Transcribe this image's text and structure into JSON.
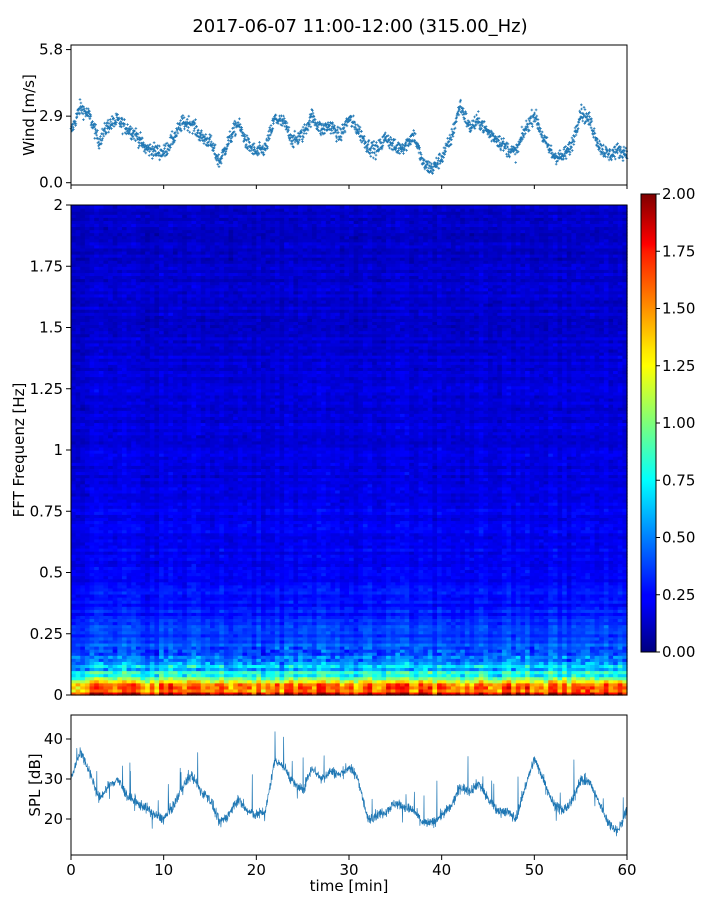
{
  "chart_data": [
    {
      "type": "scatter",
      "title": "2017-06-07 11:00-12:00 (315.00_Hz)",
      "ylabel": "Wind [m/s]",
      "ytick_labels": [
        "0.0",
        "2.9",
        "5.8"
      ],
      "yticks": [
        0.0,
        2.9,
        5.8
      ],
      "xlim": [
        0,
        60
      ],
      "ylim": [
        -0.1,
        6.0
      ],
      "marker": "+",
      "color": "#1f77b4",
      "series": [
        {
          "x": [
            0,
            1,
            2,
            3,
            4,
            5,
            6,
            7,
            8,
            9,
            10,
            11,
            12,
            13,
            14,
            15,
            16,
            17,
            18,
            19,
            20,
            21,
            22,
            23,
            24,
            25,
            26,
            27,
            28,
            29,
            30,
            31,
            32,
            33,
            34,
            35,
            36,
            37,
            38,
            39,
            40,
            41,
            42,
            43,
            44,
            45,
            46,
            47,
            48,
            49,
            50,
            51,
            52,
            53,
            54,
            55,
            56,
            57,
            58,
            59,
            60
          ],
          "y": [
            2.2,
            3.3,
            2.9,
            1.8,
            2.5,
            2.7,
            2.4,
            2.1,
            1.5,
            1.4,
            1.3,
            1.9,
            2.6,
            2.6,
            2.0,
            1.8,
            0.9,
            1.8,
            2.6,
            1.7,
            1.3,
            1.5,
            2.8,
            2.6,
            1.8,
            2.1,
            2.9,
            2.3,
            2.5,
            2.0,
            2.8,
            2.3,
            1.6,
            1.4,
            2.0,
            1.5,
            1.6,
            2.1,
            0.8,
            0.6,
            1.1,
            1.9,
            3.4,
            2.4,
            2.7,
            2.2,
            1.9,
            1.5,
            1.3,
            2.3,
            3.0,
            1.9,
            1.2,
            1.1,
            1.6,
            3.1,
            2.7,
            1.6,
            1.2,
            1.4,
            1.3
          ]
        }
      ]
    },
    {
      "type": "heatmap",
      "ylabel": "FFT Frequenz [Hz]",
      "ytick_labels": [
        "0",
        "0.25",
        "0.5",
        "0.75",
        "1",
        "1.25",
        "1.5",
        "1.75",
        "2"
      ],
      "yticks": [
        0,
        0.25,
        0.5,
        0.75,
        1,
        1.25,
        1.5,
        1.75,
        2
      ],
      "xlim": [
        0,
        60
      ],
      "ylim": [
        0,
        2
      ],
      "colormap": "jet",
      "colorbar": {
        "range": [
          0.0,
          2.0
        ],
        "tick_labels": [
          "0.00",
          "0.25",
          "0.50",
          "0.75",
          "1.00",
          "1.25",
          "1.50",
          "1.75",
          "2.00"
        ],
        "ticks": [
          0,
          0.25,
          0.5,
          0.75,
          1.0,
          1.25,
          1.5,
          1.75,
          2.0
        ]
      },
      "frequency_profile": {
        "freq_hz": [
          0.0,
          0.02,
          0.04,
          0.06,
          0.08,
          0.1,
          0.15,
          0.2,
          0.3,
          0.5,
          1.0,
          2.0
        ],
        "typical_value": [
          1.95,
          1.75,
          1.3,
          1.05,
          0.85,
          0.7,
          0.5,
          0.4,
          0.3,
          0.24,
          0.18,
          0.14
        ]
      }
    },
    {
      "type": "line",
      "ylabel": "SPL [dB]",
      "xlabel": "time [min]",
      "ytick_labels": [
        "20",
        "30",
        "40"
      ],
      "yticks": [
        20,
        30,
        40
      ],
      "xtick_labels": [
        "0",
        "10",
        "20",
        "30",
        "40",
        "50",
        "60"
      ],
      "xticks": [
        0,
        10,
        20,
        30,
        40,
        50,
        60
      ],
      "xlim": [
        0,
        60
      ],
      "ylim": [
        11,
        46
      ],
      "color": "#1f77b4",
      "series": [
        {
          "x": [
            0,
            1,
            2,
            3,
            4,
            5,
            6,
            7,
            8,
            9,
            10,
            11,
            12,
            13,
            14,
            15,
            16,
            17,
            18,
            19,
            20,
            21,
            22,
            23,
            24,
            25,
            26,
            27,
            28,
            29,
            30,
            31,
            32,
            33,
            34,
            35,
            36,
            37,
            38,
            39,
            40,
            41,
            42,
            43,
            44,
            45,
            46,
            47,
            48,
            49,
            50,
            51,
            52,
            53,
            54,
            55,
            56,
            57,
            58,
            59,
            60
          ],
          "y": [
            30,
            37,
            32,
            25,
            28,
            30,
            26,
            24,
            23,
            21,
            20,
            23,
            28,
            31,
            27,
            25,
            19,
            21,
            25,
            22,
            21,
            22,
            35,
            33,
            29,
            27,
            33,
            30,
            32,
            31,
            33,
            30,
            20,
            21,
            22,
            24,
            23,
            22,
            19,
            19,
            21,
            23,
            28,
            27,
            29,
            25,
            22,
            22,
            20,
            28,
            35,
            30,
            24,
            22,
            24,
            30,
            29,
            24,
            19,
            17,
            22
          ]
        }
      ]
    }
  ]
}
